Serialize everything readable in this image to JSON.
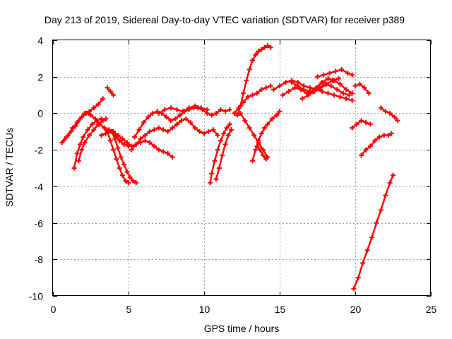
{
  "chart_data": {
    "type": "scatter",
    "title": "Day 213 of 2019, Sidereal Day-to-day VTEC variation (SDTVAR) for receiver p389",
    "xlabel": "GPS time / hours",
    "ylabel": "SDTVAR / TECUs",
    "xlim": [
      0,
      25
    ],
    "ylim": [
      -10,
      4
    ],
    "xticks": [
      "0",
      "5",
      "10",
      "15",
      "20",
      "25"
    ],
    "yticks": [
      "4",
      "2",
      "0",
      "-2",
      "-4",
      "-6",
      "-8",
      "-10"
    ],
    "grid": true,
    "marker": "+",
    "color": "#ff0000",
    "series": [
      {
        "name": "s1",
        "x": [
          0.6,
          0.9,
          1.2,
          1.5,
          1.8,
          2.1,
          2.4,
          2.7,
          3.0,
          3.3
        ],
        "y": [
          -1.6,
          -1.3,
          -1.0,
          -0.7,
          -0.3,
          0.0,
          0.1,
          0.3,
          0.5,
          0.8
        ]
      },
      {
        "name": "s2",
        "x": [
          0.7,
          1.0,
          1.3,
          1.6,
          1.9,
          2.2,
          2.5,
          2.8,
          3.1,
          3.4,
          3.7,
          4.0,
          4.3,
          4.6,
          4.9,
          5.2,
          5.5,
          5.8,
          6.1,
          6.4,
          6.7,
          7.0,
          7.3,
          7.6,
          7.9
        ],
        "y": [
          -1.5,
          -1.2,
          -0.8,
          -0.5,
          -0.2,
          0.0,
          -0.1,
          -0.3,
          -0.6,
          -0.8,
          -0.9,
          -1.0,
          -1.2,
          -1.4,
          -1.6,
          -1.8,
          -1.7,
          -1.6,
          -1.5,
          -1.6,
          -1.8,
          -2.0,
          -2.1,
          -2.2,
          -2.4
        ]
      },
      {
        "name": "s3",
        "x": [
          1.4,
          1.6,
          1.8,
          2.0,
          2.3,
          2.6,
          2.9,
          3.2
        ],
        "y": [
          -3.0,
          -2.2,
          -1.7,
          -1.3,
          -0.9,
          -0.6,
          -0.4,
          -0.3
        ]
      },
      {
        "name": "s4",
        "x": [
          1.7,
          1.9,
          2.1,
          2.4,
          2.7,
          3.0,
          3.3,
          3.5
        ],
        "y": [
          -2.6,
          -2.0,
          -1.6,
          -1.2,
          -0.9,
          -0.6,
          -0.4,
          -0.3
        ]
      },
      {
        "name": "s5",
        "x": [
          3.4,
          3.6,
          3.8,
          4.0,
          4.2,
          4.4,
          4.6,
          4.8,
          5.0
        ],
        "y": [
          -0.8,
          -1.0,
          -1.5,
          -2.0,
          -2.5,
          -3.0,
          -3.4,
          -3.7,
          -3.8
        ]
      },
      {
        "name": "s6",
        "x": [
          3.9,
          4.1,
          4.3,
          4.5,
          4.7,
          4.9,
          5.1,
          5.3,
          5.5
        ],
        "y": [
          -1.0,
          -1.4,
          -1.9,
          -2.4,
          -2.8,
          -3.2,
          -3.5,
          -3.7,
          -3.8
        ]
      },
      {
        "name": "s7",
        "x": [
          3.2,
          3.5,
          3.8,
          4.1,
          4.4,
          4.7,
          5.0
        ],
        "y": [
          -1.2,
          -1.1,
          -1.0,
          -1.2,
          -1.5,
          -1.7,
          -1.8
        ]
      },
      {
        "name": "s8",
        "x": [
          3.6,
          3.8,
          4.0
        ],
        "y": [
          1.4,
          1.2,
          1.0
        ]
      },
      {
        "name": "s9",
        "x": [
          5.4,
          5.7,
          6.0,
          6.3,
          6.6,
          6.9,
          7.2,
          7.5,
          7.8,
          8.1,
          8.4,
          8.7,
          9.0,
          9.3,
          9.6,
          9.9,
          10.2,
          10.5,
          10.8,
          11.1,
          11.4,
          11.7
        ],
        "y": [
          -1.3,
          -0.9,
          -0.5,
          -0.2,
          0.0,
          0.1,
          0.0,
          -0.2,
          -0.4,
          -0.3,
          -0.1,
          0.1,
          0.2,
          0.3,
          0.3,
          0.2,
          0.0,
          -0.1,
          0.0,
          0.2,
          0.1,
          0.2
        ]
      },
      {
        "name": "s10",
        "x": [
          5.2,
          5.5,
          5.8,
          6.1,
          6.4,
          6.7,
          7.0,
          7.3,
          7.6,
          7.9,
          8.2,
          8.5,
          8.8,
          9.1,
          9.4,
          9.7,
          10.0,
          10.3,
          10.6,
          10.9
        ],
        "y": [
          -2.0,
          -1.7,
          -1.4,
          -1.2,
          -1.0,
          -0.9,
          -0.8,
          -0.9,
          -1.0,
          -0.8,
          -0.6,
          -0.4,
          -0.3,
          -0.5,
          -0.8,
          -1.0,
          -1.1,
          -1.0,
          -0.9,
          -1.2
        ]
      },
      {
        "name": "s11",
        "x": [
          7.0,
          7.4,
          7.8,
          8.2,
          8.6,
          9.0,
          9.4,
          9.8,
          10.2
        ],
        "y": [
          0.0,
          0.2,
          0.3,
          0.2,
          0.1,
          0.3,
          0.4,
          0.3,
          0.2
        ]
      },
      {
        "name": "s12",
        "x": [
          10.4,
          10.5,
          10.7,
          10.9,
          11.1,
          11.3,
          11.5,
          11.7
        ],
        "y": [
          -3.8,
          -3.3,
          -2.6,
          -2.0,
          -1.5,
          -1.1,
          -0.8,
          -0.6
        ]
      },
      {
        "name": "s13",
        "x": [
          10.8,
          11.0,
          11.2,
          11.4,
          11.6,
          11.8
        ],
        "y": [
          -3.6,
          -3.0,
          -2.3,
          -1.7,
          -1.2,
          -0.9
        ]
      },
      {
        "name": "s14",
        "x": [
          12.2,
          12.4,
          12.6,
          12.8,
          13.0,
          13.2,
          13.4,
          13.6,
          13.8,
          14.0,
          14.2,
          14.4
        ],
        "y": [
          -0.1,
          0.4,
          1.1,
          1.8,
          2.4,
          2.9,
          3.2,
          3.4,
          3.5,
          3.6,
          3.7,
          3.6
        ]
      },
      {
        "name": "s15",
        "x": [
          12.0,
          12.3,
          12.6,
          12.9,
          13.2,
          13.5,
          13.8,
          14.1,
          14.4
        ],
        "y": [
          0.0,
          0.3,
          0.6,
          0.9,
          1.0,
          1.1,
          1.3,
          1.4,
          1.5
        ]
      },
      {
        "name": "s16",
        "x": [
          12.4,
          12.7,
          13.0,
          13.3,
          13.6,
          13.9,
          14.2
        ],
        "y": [
          0.0,
          -0.4,
          -0.8,
          -1.2,
          -1.6,
          -2.0,
          -2.4
        ]
      },
      {
        "name": "s17",
        "x": [
          13.2,
          13.4,
          13.6,
          13.8,
          14.0,
          14.2,
          14.5,
          14.8,
          15.0
        ],
        "y": [
          -2.6,
          -2.0,
          -1.5,
          -1.1,
          -0.8,
          -0.6,
          -0.3,
          -0.1,
          0.1
        ]
      },
      {
        "name": "s18",
        "x": [
          13.5,
          13.7,
          13.9,
          14.1
        ],
        "y": [
          -1.8,
          -2.0,
          -2.3,
          -2.5
        ]
      },
      {
        "name": "s19",
        "x": [
          14.6,
          15.0,
          15.4,
          15.8,
          16.2,
          16.6,
          17.0,
          17.4,
          17.8,
          18.2,
          18.6,
          19.0,
          19.4,
          19.8
        ],
        "y": [
          1.3,
          1.5,
          1.7,
          1.8,
          1.7,
          1.5,
          1.4,
          1.3,
          1.2,
          1.1,
          1.0,
          0.9,
          0.8,
          0.7
        ]
      },
      {
        "name": "s20",
        "x": [
          15.2,
          15.6,
          16.0,
          16.4,
          16.8,
          17.2,
          17.6,
          18.0,
          18.4,
          18.8,
          19.2,
          19.6
        ],
        "y": [
          1.0,
          1.2,
          1.4,
          1.3,
          1.1,
          1.2,
          1.4,
          1.6,
          1.5,
          1.3,
          1.1,
          1.0
        ]
      },
      {
        "name": "s21",
        "x": [
          15.8,
          16.2,
          16.6,
          17.0,
          17.4,
          17.8,
          18.2,
          18.6,
          19.0,
          19.4,
          19.8
        ],
        "y": [
          1.7,
          1.5,
          1.3,
          1.2,
          1.4,
          1.7,
          1.9,
          1.8,
          1.6,
          1.3,
          1.1
        ]
      },
      {
        "name": "s22",
        "x": [
          17.5,
          17.9,
          18.3,
          18.7,
          19.1,
          19.5,
          19.8
        ],
        "y": [
          2.0,
          2.1,
          2.2,
          2.3,
          2.4,
          2.2,
          2.1
        ]
      },
      {
        "name": "s23",
        "x": [
          16.5,
          16.9,
          17.3,
          17.7,
          18.1,
          18.5,
          18.9
        ],
        "y": [
          0.8,
          1.0,
          1.2,
          1.4,
          1.6,
          1.8,
          1.9
        ]
      },
      {
        "name": "s24",
        "x": [
          20.0,
          20.3,
          20.6,
          20.9
        ],
        "y": [
          1.5,
          1.6,
          1.4,
          1.1
        ]
      },
      {
        "name": "s25",
        "x": [
          19.8,
          20.1,
          20.4,
          20.7,
          21.0
        ],
        "y": [
          -0.8,
          -0.6,
          -0.4,
          -0.5,
          -0.6
        ]
      },
      {
        "name": "s26",
        "x": [
          20.4,
          20.7,
          21.0,
          21.3,
          21.6,
          21.9,
          22.2,
          22.4
        ],
        "y": [
          -2.3,
          -2.0,
          -1.8,
          -1.5,
          -1.3,
          -1.2,
          -1.2,
          -1.1
        ]
      },
      {
        "name": "s27",
        "x": [
          21.7,
          22.0,
          22.3,
          22.6,
          22.8
        ],
        "y": [
          0.3,
          0.1,
          0.0,
          -0.2,
          -0.4
        ]
      },
      {
        "name": "s28",
        "x": [
          19.9,
          20.2,
          20.5,
          20.8,
          21.1,
          21.4,
          21.7,
          22.0,
          22.3,
          22.5
        ],
        "y": [
          -9.6,
          -9.0,
          -8.2,
          -7.5,
          -6.8,
          -6.0,
          -5.3,
          -4.5,
          -3.8,
          -3.4
        ]
      }
    ]
  }
}
